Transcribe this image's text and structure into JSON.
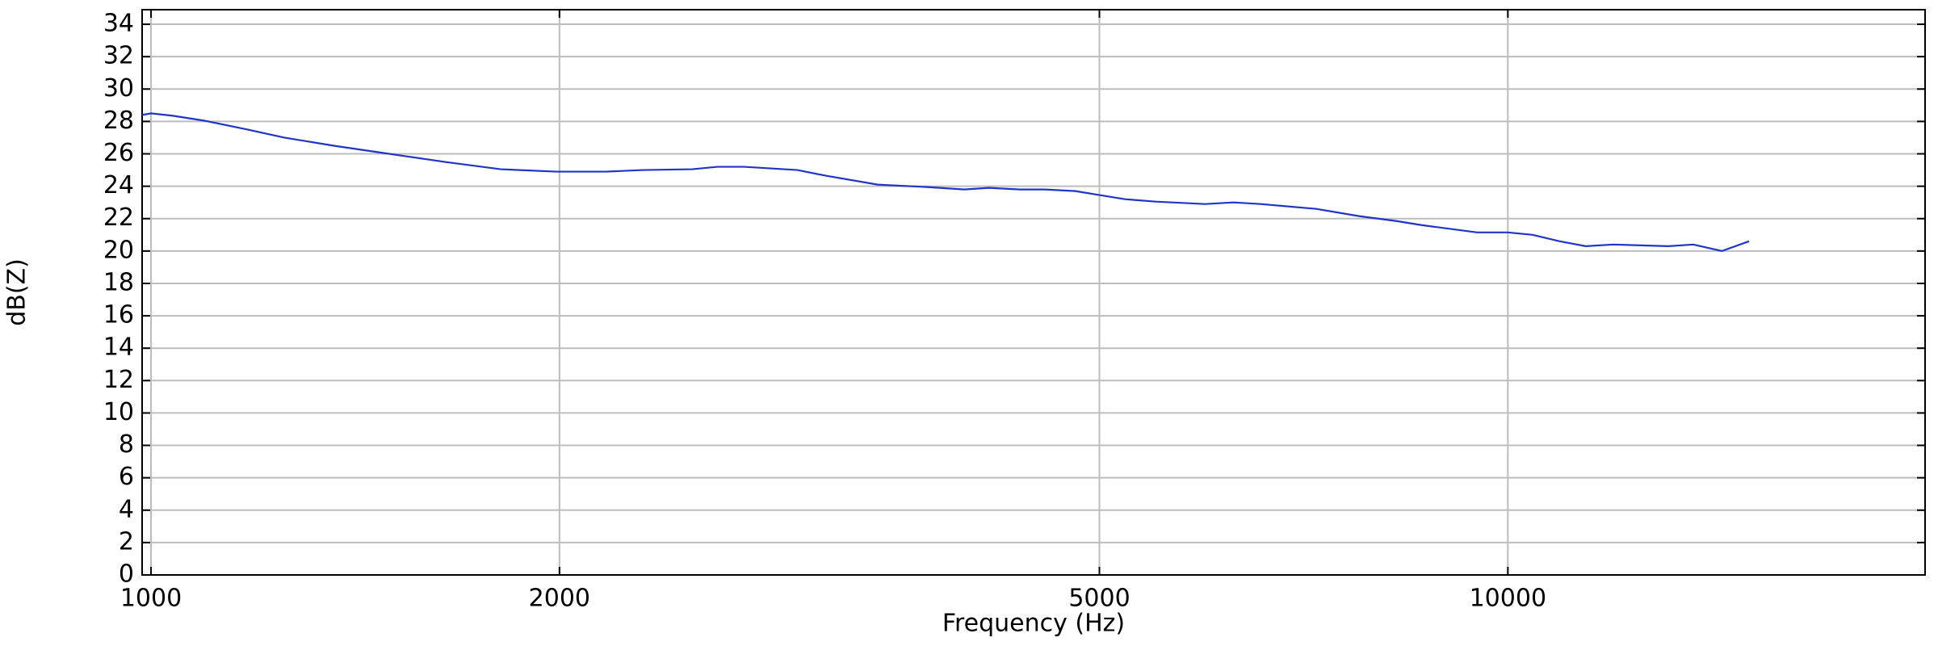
{
  "chart_data": {
    "type": "line",
    "x_label": "Frequency (Hz)",
    "y_label": "dB(Z)",
    "x_scale": "log",
    "grid": true,
    "x": [
      985,
      1000,
      1038,
      1094,
      1178,
      1254,
      1364,
      1484,
      1647,
      1810,
      1990,
      2164,
      2304,
      2506,
      2614,
      2736,
      2995,
      3143,
      3432,
      3732,
      3975,
      4145,
      4368,
      4555,
      4800,
      5006,
      5222,
      5502,
      5983,
      6279,
      6576,
      7225,
      7776,
      8279,
      8637,
      9490,
      10000,
      10428,
      10920,
      11413,
      11952,
      13136,
      13698,
      14378,
      15055
    ],
    "series": [
      {
        "color": "#1f35c9",
        "values": [
          28.4,
          28.5,
          28.35,
          28.05,
          27.5,
          27.0,
          26.5,
          26.05,
          25.5,
          25.05,
          24.9,
          24.9,
          25.0,
          25.05,
          25.2,
          25.2,
          25.0,
          24.65,
          24.1,
          23.95,
          23.8,
          23.9,
          23.8,
          23.8,
          23.7,
          23.45,
          23.2,
          23.05,
          22.9,
          23.0,
          22.9,
          22.6,
          22.15,
          21.85,
          21.6,
          21.15,
          21.15,
          21.0,
          20.6,
          20.3,
          20.4,
          20.3,
          20.4,
          20.0,
          20.6
        ]
      }
    ],
    "xlim": [
      985,
      20300
    ],
    "xticks": [
      1000,
      2000,
      5000,
      10000
    ],
    "ylim": [
      0,
      34.9
    ],
    "yticks": [
      0,
      2,
      4,
      6,
      8,
      10,
      12,
      14,
      16,
      18,
      20,
      22,
      24,
      26,
      28,
      30,
      32,
      34
    ]
  }
}
